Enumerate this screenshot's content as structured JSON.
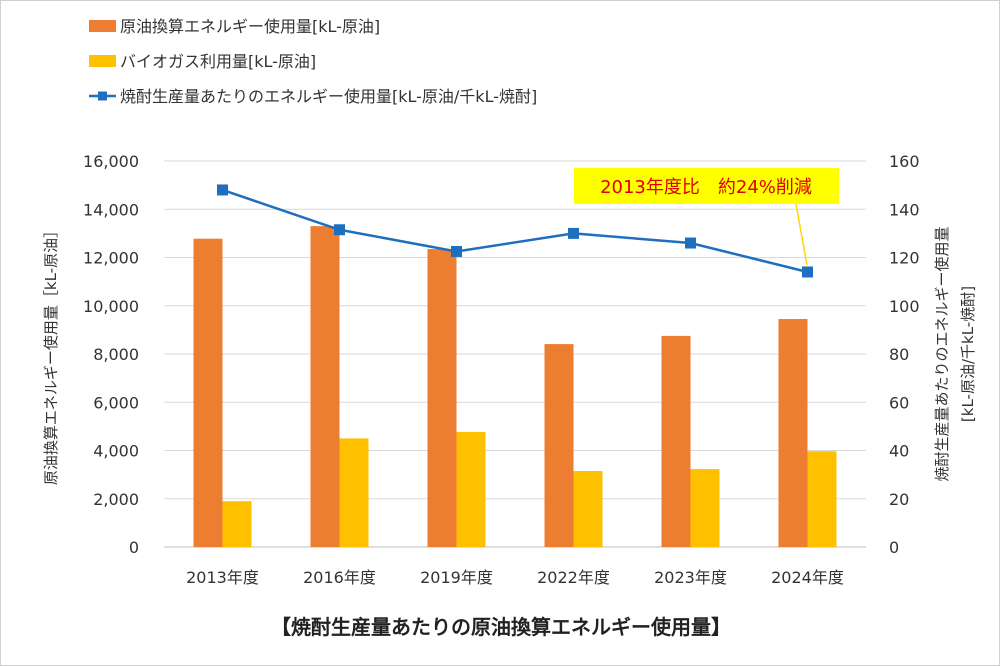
{
  "chart_data": {
    "type": "bar",
    "title": "【焼酎生産量あたりの原油換算エネルギー使用量】",
    "categories": [
      "2013年度",
      "2016年度",
      "2019年度",
      "2022年度",
      "2023年度",
      "2024年度"
    ],
    "series": [
      {
        "name": "原油換算エネルギー使用量[kL-原油]",
        "type": "bar",
        "axis": "left",
        "color": "#ED7D31",
        "values": [
          12780,
          13300,
          12350,
          8410,
          8750,
          9450
        ]
      },
      {
        "name": "バイオガス利用量[kL-原油]",
        "type": "bar",
        "axis": "left",
        "color": "#FFC000",
        "values": [
          1900,
          4500,
          4770,
          3150,
          3230,
          3970
        ]
      },
      {
        "name": "焼酎生産量あたりのエネルギー使用量[kL-原油/千kL-焼酎]",
        "type": "line",
        "axis": "right",
        "color": "#1F6FBF",
        "values": [
          148,
          131.5,
          122.5,
          130,
          126,
          114
        ]
      }
    ],
    "ylabel": "原油換算エネルギー使用量［kL-原油］",
    "ylabel_right": [
      "焼酎生産量あたりのエネルギー使用量",
      "[kL-原油/千kL-焼酎]"
    ],
    "ylim": [
      0,
      16000
    ],
    "ylim_right": [
      0,
      160
    ],
    "yticks": [
      "0",
      "2,000",
      "4,000",
      "6,000",
      "8,000",
      "10,000",
      "12,000",
      "14,000",
      "16,000"
    ],
    "yticks_right": [
      "0",
      "20",
      "40",
      "60",
      "80",
      "100",
      "120",
      "140",
      "160"
    ],
    "grid": true,
    "legend_position": "top-left",
    "annotation": "2013年度比　約24%削減"
  }
}
